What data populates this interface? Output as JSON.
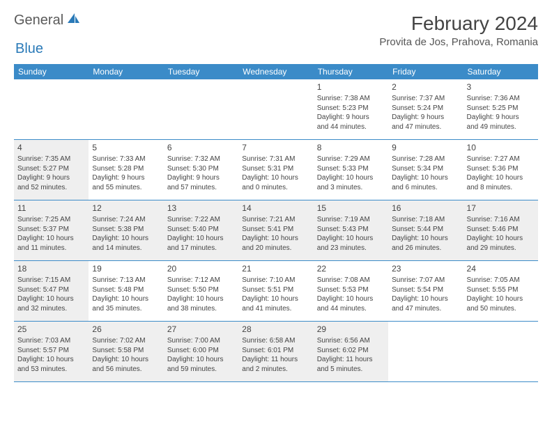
{
  "logo": {
    "text_dark": "General",
    "text_blue": "Blue"
  },
  "header": {
    "month_title": "February 2024",
    "location": "Provita de Jos, Prahova, Romania"
  },
  "colors": {
    "header_bg": "#3b8bc8",
    "header_text": "#ffffff",
    "shaded_bg": "#efefef",
    "border": "#3b8bc8",
    "logo_blue": "#2a7ab8",
    "logo_dark": "#5a5a5a",
    "text": "#444444"
  },
  "day_names": [
    "Sunday",
    "Monday",
    "Tuesday",
    "Wednesday",
    "Thursday",
    "Friday",
    "Saturday"
  ],
  "weeks": [
    [
      {
        "num": "",
        "sunrise": "",
        "sunset": "",
        "daylight1": "",
        "daylight2": "",
        "shaded": false
      },
      {
        "num": "",
        "sunrise": "",
        "sunset": "",
        "daylight1": "",
        "daylight2": "",
        "shaded": false
      },
      {
        "num": "",
        "sunrise": "",
        "sunset": "",
        "daylight1": "",
        "daylight2": "",
        "shaded": false
      },
      {
        "num": "",
        "sunrise": "",
        "sunset": "",
        "daylight1": "",
        "daylight2": "",
        "shaded": false
      },
      {
        "num": "1",
        "sunrise": "Sunrise: 7:38 AM",
        "sunset": "Sunset: 5:23 PM",
        "daylight1": "Daylight: 9 hours",
        "daylight2": "and 44 minutes.",
        "shaded": false
      },
      {
        "num": "2",
        "sunrise": "Sunrise: 7:37 AM",
        "sunset": "Sunset: 5:24 PM",
        "daylight1": "Daylight: 9 hours",
        "daylight2": "and 47 minutes.",
        "shaded": false
      },
      {
        "num": "3",
        "sunrise": "Sunrise: 7:36 AM",
        "sunset": "Sunset: 5:25 PM",
        "daylight1": "Daylight: 9 hours",
        "daylight2": "and 49 minutes.",
        "shaded": false
      }
    ],
    [
      {
        "num": "4",
        "sunrise": "Sunrise: 7:35 AM",
        "sunset": "Sunset: 5:27 PM",
        "daylight1": "Daylight: 9 hours",
        "daylight2": "and 52 minutes.",
        "shaded": true
      },
      {
        "num": "5",
        "sunrise": "Sunrise: 7:33 AM",
        "sunset": "Sunset: 5:28 PM",
        "daylight1": "Daylight: 9 hours",
        "daylight2": "and 55 minutes.",
        "shaded": false
      },
      {
        "num": "6",
        "sunrise": "Sunrise: 7:32 AM",
        "sunset": "Sunset: 5:30 PM",
        "daylight1": "Daylight: 9 hours",
        "daylight2": "and 57 minutes.",
        "shaded": false
      },
      {
        "num": "7",
        "sunrise": "Sunrise: 7:31 AM",
        "sunset": "Sunset: 5:31 PM",
        "daylight1": "Daylight: 10 hours",
        "daylight2": "and 0 minutes.",
        "shaded": false
      },
      {
        "num": "8",
        "sunrise": "Sunrise: 7:29 AM",
        "sunset": "Sunset: 5:33 PM",
        "daylight1": "Daylight: 10 hours",
        "daylight2": "and 3 minutes.",
        "shaded": false
      },
      {
        "num": "9",
        "sunrise": "Sunrise: 7:28 AM",
        "sunset": "Sunset: 5:34 PM",
        "daylight1": "Daylight: 10 hours",
        "daylight2": "and 6 minutes.",
        "shaded": false
      },
      {
        "num": "10",
        "sunrise": "Sunrise: 7:27 AM",
        "sunset": "Sunset: 5:36 PM",
        "daylight1": "Daylight: 10 hours",
        "daylight2": "and 8 minutes.",
        "shaded": false
      }
    ],
    [
      {
        "num": "11",
        "sunrise": "Sunrise: 7:25 AM",
        "sunset": "Sunset: 5:37 PM",
        "daylight1": "Daylight: 10 hours",
        "daylight2": "and 11 minutes.",
        "shaded": true
      },
      {
        "num": "12",
        "sunrise": "Sunrise: 7:24 AM",
        "sunset": "Sunset: 5:38 PM",
        "daylight1": "Daylight: 10 hours",
        "daylight2": "and 14 minutes.",
        "shaded": true
      },
      {
        "num": "13",
        "sunrise": "Sunrise: 7:22 AM",
        "sunset": "Sunset: 5:40 PM",
        "daylight1": "Daylight: 10 hours",
        "daylight2": "and 17 minutes.",
        "shaded": true
      },
      {
        "num": "14",
        "sunrise": "Sunrise: 7:21 AM",
        "sunset": "Sunset: 5:41 PM",
        "daylight1": "Daylight: 10 hours",
        "daylight2": "and 20 minutes.",
        "shaded": true
      },
      {
        "num": "15",
        "sunrise": "Sunrise: 7:19 AM",
        "sunset": "Sunset: 5:43 PM",
        "daylight1": "Daylight: 10 hours",
        "daylight2": "and 23 minutes.",
        "shaded": true
      },
      {
        "num": "16",
        "sunrise": "Sunrise: 7:18 AM",
        "sunset": "Sunset: 5:44 PM",
        "daylight1": "Daylight: 10 hours",
        "daylight2": "and 26 minutes.",
        "shaded": true
      },
      {
        "num": "17",
        "sunrise": "Sunrise: 7:16 AM",
        "sunset": "Sunset: 5:46 PM",
        "daylight1": "Daylight: 10 hours",
        "daylight2": "and 29 minutes.",
        "shaded": true
      }
    ],
    [
      {
        "num": "18",
        "sunrise": "Sunrise: 7:15 AM",
        "sunset": "Sunset: 5:47 PM",
        "daylight1": "Daylight: 10 hours",
        "daylight2": "and 32 minutes.",
        "shaded": true
      },
      {
        "num": "19",
        "sunrise": "Sunrise: 7:13 AM",
        "sunset": "Sunset: 5:48 PM",
        "daylight1": "Daylight: 10 hours",
        "daylight2": "and 35 minutes.",
        "shaded": false
      },
      {
        "num": "20",
        "sunrise": "Sunrise: 7:12 AM",
        "sunset": "Sunset: 5:50 PM",
        "daylight1": "Daylight: 10 hours",
        "daylight2": "and 38 minutes.",
        "shaded": false
      },
      {
        "num": "21",
        "sunrise": "Sunrise: 7:10 AM",
        "sunset": "Sunset: 5:51 PM",
        "daylight1": "Daylight: 10 hours",
        "daylight2": "and 41 minutes.",
        "shaded": false
      },
      {
        "num": "22",
        "sunrise": "Sunrise: 7:08 AM",
        "sunset": "Sunset: 5:53 PM",
        "daylight1": "Daylight: 10 hours",
        "daylight2": "and 44 minutes.",
        "shaded": false
      },
      {
        "num": "23",
        "sunrise": "Sunrise: 7:07 AM",
        "sunset": "Sunset: 5:54 PM",
        "daylight1": "Daylight: 10 hours",
        "daylight2": "and 47 minutes.",
        "shaded": false
      },
      {
        "num": "24",
        "sunrise": "Sunrise: 7:05 AM",
        "sunset": "Sunset: 5:55 PM",
        "daylight1": "Daylight: 10 hours",
        "daylight2": "and 50 minutes.",
        "shaded": false
      }
    ],
    [
      {
        "num": "25",
        "sunrise": "Sunrise: 7:03 AM",
        "sunset": "Sunset: 5:57 PM",
        "daylight1": "Daylight: 10 hours",
        "daylight2": "and 53 minutes.",
        "shaded": true
      },
      {
        "num": "26",
        "sunrise": "Sunrise: 7:02 AM",
        "sunset": "Sunset: 5:58 PM",
        "daylight1": "Daylight: 10 hours",
        "daylight2": "and 56 minutes.",
        "shaded": true
      },
      {
        "num": "27",
        "sunrise": "Sunrise: 7:00 AM",
        "sunset": "Sunset: 6:00 PM",
        "daylight1": "Daylight: 10 hours",
        "daylight2": "and 59 minutes.",
        "shaded": true
      },
      {
        "num": "28",
        "sunrise": "Sunrise: 6:58 AM",
        "sunset": "Sunset: 6:01 PM",
        "daylight1": "Daylight: 11 hours",
        "daylight2": "and 2 minutes.",
        "shaded": true
      },
      {
        "num": "29",
        "sunrise": "Sunrise: 6:56 AM",
        "sunset": "Sunset: 6:02 PM",
        "daylight1": "Daylight: 11 hours",
        "daylight2": "and 5 minutes.",
        "shaded": true
      },
      {
        "num": "",
        "sunrise": "",
        "sunset": "",
        "daylight1": "",
        "daylight2": "",
        "shaded": false
      },
      {
        "num": "",
        "sunrise": "",
        "sunset": "",
        "daylight1": "",
        "daylight2": "",
        "shaded": false
      }
    ]
  ]
}
